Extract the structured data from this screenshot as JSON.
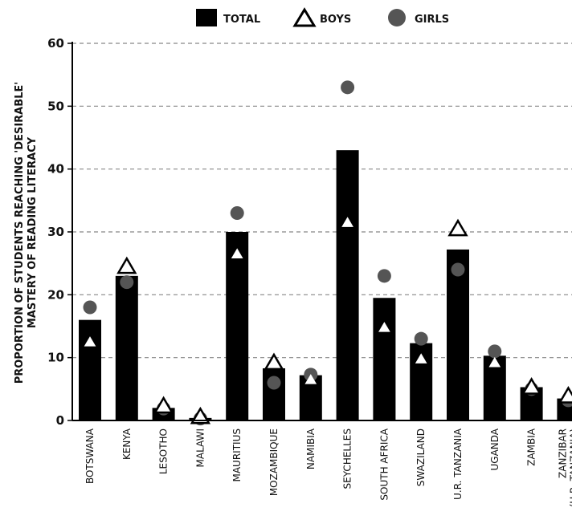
{
  "chart_data": {
    "type": "bar",
    "ylabel_line1": "PROPORTION OF STUDENTS REACHING 'DESIRABLE'",
    "ylabel_line2": "MASTERY OF READING LITERACY",
    "ylim": [
      0,
      60
    ],
    "yticks": [
      0,
      10,
      20,
      30,
      40,
      50,
      60
    ],
    "grid": true,
    "legend_position": "top",
    "legend": [
      "TOTAL",
      "BOYS",
      "GIRLS"
    ],
    "categories": [
      "BOTSWANA",
      "KENYA",
      "LESOTHO",
      "MALAWI",
      "MAURITIUS",
      "MOZAMBIQUE",
      "NAMIBIA",
      "SEYCHELLES",
      "SOUTH AFRICA",
      "SWAZILAND",
      "U.R. TANZANIA",
      "UGANDA",
      "ZAMBIA",
      "ZANZIBAR (U.R. TANZANIA)"
    ],
    "category_lines": [
      [
        "BOTSWANA"
      ],
      [
        "KENYA"
      ],
      [
        "LESOTHO"
      ],
      [
        "MALAWI"
      ],
      [
        "MAURITIUS"
      ],
      [
        "MOZAMBIQUE"
      ],
      [
        "NAMIBIA"
      ],
      [
        "SEYCHELLES"
      ],
      [
        "SOUTH AFRICA"
      ],
      [
        "SWAZILAND"
      ],
      [
        "U.R. TANZANIA"
      ],
      [
        "UGANDA"
      ],
      [
        "ZAMBIA"
      ],
      [
        "ZANZIBAR",
        "(U.R. TANZANIA)"
      ]
    ],
    "series": [
      {
        "name": "TOTAL",
        "style": "bar",
        "values": [
          16,
          23,
          2,
          0.4,
          30,
          8.3,
          7.2,
          43,
          19.5,
          12.3,
          27.2,
          10.3,
          5.3,
          3.5
        ]
      },
      {
        "name": "BOYS",
        "style": "triangle",
        "values": [
          12.5,
          24.5,
          2.3,
          0.6,
          26.5,
          9.2,
          6.5,
          31.5,
          14.8,
          9.8,
          30.5,
          9.2,
          5.3,
          3.9
        ]
      },
      {
        "name": "GIRLS",
        "style": "circle",
        "values": [
          18,
          22,
          1.9,
          0.3,
          33,
          6,
          7.3,
          53,
          23,
          13,
          24,
          11,
          5,
          3.2
        ]
      }
    ],
    "colors": {
      "bar": "#000000",
      "girls": "#555555",
      "boys_fill": "#ffffff",
      "boys_stroke": "#000000",
      "grid": "#888888"
    }
  }
}
